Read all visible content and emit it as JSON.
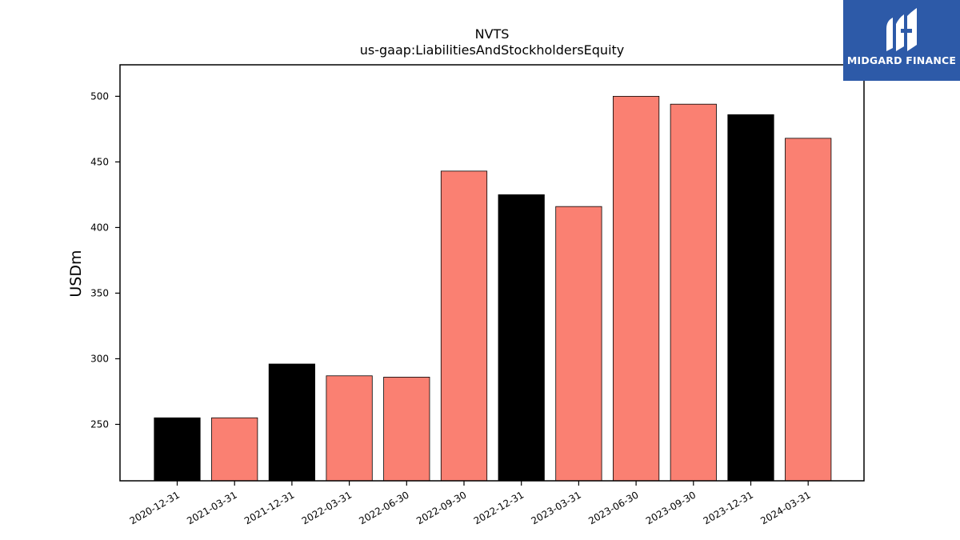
{
  "chart_data": {
    "type": "bar",
    "title": "NVTS",
    "subtitle": "us-gaap:LiabilitiesAndStockholdersEquity",
    "xlabel": "",
    "ylabel": "USDm",
    "categories": [
      "2020-12-31",
      "2021-03-31",
      "2021-12-31",
      "2022-03-31",
      "2022-06-30",
      "2022-09-30",
      "2022-12-31",
      "2023-03-31",
      "2023-06-30",
      "2023-09-30",
      "2023-12-31",
      "2024-03-31"
    ],
    "values": [
      255,
      255,
      296,
      287,
      286,
      443,
      425,
      416,
      500,
      494,
      486,
      468
    ],
    "colors": [
      "#000000",
      "#fa8072",
      "#000000",
      "#fa8072",
      "#fa8072",
      "#fa8072",
      "#000000",
      "#fa8072",
      "#fa8072",
      "#fa8072",
      "#000000",
      "#fa8072"
    ],
    "ylim": [
      207,
      524
    ],
    "yticks": [
      250,
      300,
      350,
      400,
      450,
      500
    ],
    "grid": false,
    "legend": "none"
  },
  "logo": {
    "text": "MIDGARD FINANCE",
    "background": "#2d5aa8",
    "icon": "midgard-logo-icon"
  }
}
